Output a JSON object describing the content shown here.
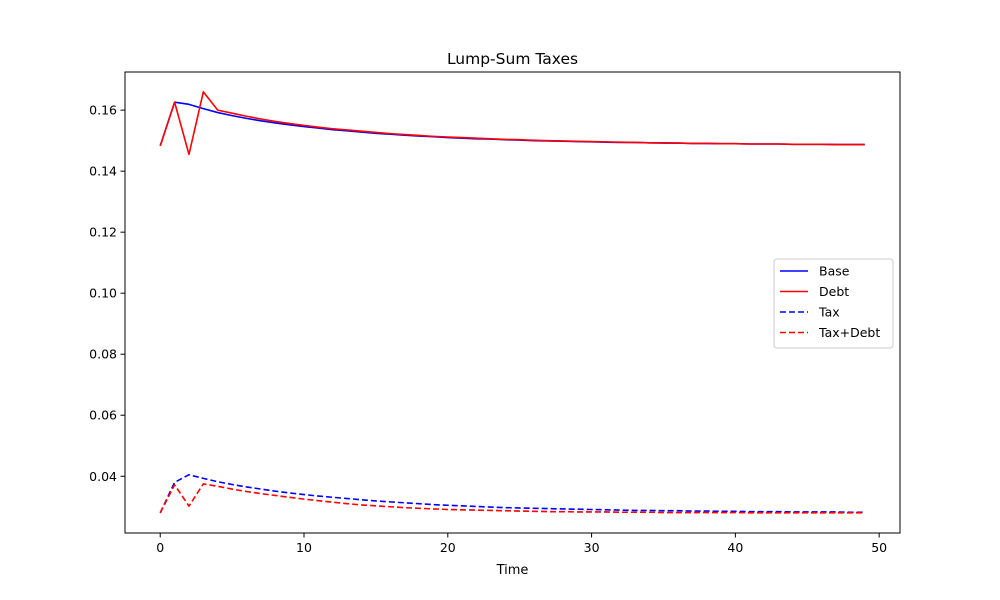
{
  "chart_data": {
    "type": "line",
    "title": "Lump-Sum Taxes",
    "xlabel": "Time",
    "ylabel": "",
    "xlim": [
      -2.45,
      51.45
    ],
    "ylim": [
      0.0214,
      0.1725
    ],
    "x_ticks": [
      0,
      10,
      20,
      30,
      40,
      50
    ],
    "y_ticks": [
      0.04,
      0.06,
      0.08,
      0.1,
      0.12,
      0.14,
      0.16
    ],
    "y_tick_labels": [
      "0.04",
      "0.06",
      "0.08",
      "0.10",
      "0.12",
      "0.14",
      "0.16"
    ],
    "grid": false,
    "legend": "center-right",
    "x": [
      0,
      1,
      2,
      3,
      4,
      5,
      6,
      7,
      8,
      9,
      10,
      11,
      12,
      13,
      14,
      15,
      16,
      17,
      18,
      19,
      20,
      21,
      22,
      23,
      24,
      25,
      26,
      27,
      28,
      29,
      30,
      31,
      32,
      33,
      34,
      35,
      36,
      37,
      38,
      39,
      40,
      41,
      42,
      43,
      44,
      45,
      46,
      47,
      48,
      49
    ],
    "series": [
      {
        "name": "Base",
        "color": "#0000ff",
        "dash": "solid",
        "values": [
          0.1483,
          0.1626,
          0.1619,
          0.1605,
          0.1592,
          0.1582,
          0.1573,
          0.1565,
          0.1558,
          0.1552,
          0.1546,
          0.1541,
          0.1536,
          0.1532,
          0.1528,
          0.1524,
          0.1521,
          0.1518,
          0.1515,
          0.1513,
          0.151,
          0.1508,
          0.1506,
          0.1505,
          0.1503,
          0.1502,
          0.15,
          0.1499,
          0.1498,
          0.1497,
          0.1496,
          0.1495,
          0.1494,
          0.1494,
          0.1493,
          0.1492,
          0.1492,
          0.1491,
          0.1491,
          0.149,
          0.149,
          0.1489,
          0.1489,
          0.1489,
          0.1488,
          0.1488,
          0.1488,
          0.1487,
          0.1487,
          0.1487
        ]
      },
      {
        "name": "Debt",
        "color": "#ff0000",
        "dash": "solid",
        "values": [
          0.1483,
          0.1626,
          0.1455,
          0.166,
          0.16,
          0.159,
          0.158,
          0.1571,
          0.1563,
          0.1556,
          0.155,
          0.1544,
          0.1539,
          0.1535,
          0.1531,
          0.1527,
          0.1523,
          0.152,
          0.1517,
          0.1514,
          0.1512,
          0.151,
          0.1508,
          0.1506,
          0.1504,
          0.1503,
          0.1501,
          0.15,
          0.1499,
          0.1498,
          0.1497,
          0.1496,
          0.1495,
          0.1494,
          0.1493,
          0.1493,
          0.1492,
          0.1491,
          0.1491,
          0.149,
          0.149,
          0.1489,
          0.1489,
          0.1489,
          0.1488,
          0.1488,
          0.1488,
          0.1487,
          0.1487,
          0.1487
        ]
      },
      {
        "name": "Tax",
        "color": "#0000ff",
        "dash": "dashed",
        "values": [
          0.028,
          0.038,
          0.0405,
          0.0393,
          0.0382,
          0.0373,
          0.0365,
          0.0358,
          0.0351,
          0.0345,
          0.034,
          0.0335,
          0.0331,
          0.0327,
          0.0323,
          0.0319,
          0.0316,
          0.0313,
          0.031,
          0.0307,
          0.0305,
          0.0303,
          0.0301,
          0.0299,
          0.0297,
          0.0296,
          0.0295,
          0.0294,
          0.0293,
          0.0292,
          0.0291,
          0.029,
          0.0289,
          0.0288,
          0.0288,
          0.0287,
          0.0287,
          0.0286,
          0.0286,
          0.0285,
          0.0285,
          0.0284,
          0.0284,
          0.0284,
          0.0283,
          0.0283,
          0.0283,
          0.0283,
          0.0282,
          0.0282
        ]
      },
      {
        "name": "Tax+Debt",
        "color": "#ff0000",
        "dash": "dashed",
        "values": [
          0.028,
          0.0372,
          0.0302,
          0.0375,
          0.0367,
          0.0358,
          0.035,
          0.0343,
          0.0337,
          0.0331,
          0.0325,
          0.032,
          0.0315,
          0.031,
          0.0306,
          0.0303,
          0.03,
          0.0297,
          0.0295,
          0.0293,
          0.0291,
          0.029,
          0.0289,
          0.0288,
          0.0287,
          0.0286,
          0.0285,
          0.0284,
          0.0284,
          0.0283,
          0.0283,
          0.0283,
          0.0282,
          0.0282,
          0.0282,
          0.0281,
          0.0281,
          0.0281,
          0.0281,
          0.0281,
          0.0281,
          0.028,
          0.028,
          0.028,
          0.028,
          0.028,
          0.028,
          0.028,
          0.028,
          0.028
        ]
      }
    ]
  }
}
